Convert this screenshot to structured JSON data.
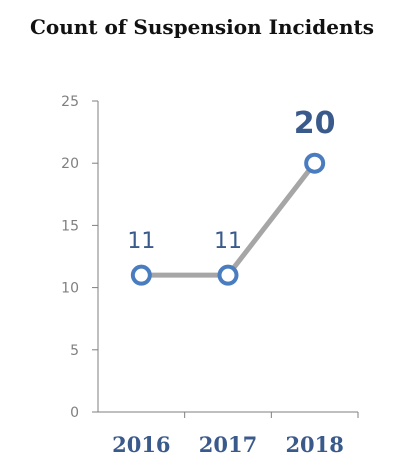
{
  "colors": {
    "line": "#a6a6a6",
    "marker_stroke": "#4a7dc0",
    "marker_fill": "#ffffff",
    "label": "#3a5a8c",
    "axis": "#7f7f7f",
    "title": "#111111"
  },
  "chart_data": {
    "type": "line",
    "title": "Count of Suspension Incidents",
    "xlabel": "",
    "ylabel": "",
    "categories": [
      "2016",
      "2017",
      "2018"
    ],
    "series": [
      {
        "values": [
          11,
          11,
          20
        ],
        "data_labels": [
          "11",
          "11",
          "20"
        ],
        "highlighted_label_index": 2
      }
    ],
    "ylim": [
      0,
      25
    ],
    "y_ticks": [
      "0",
      "5",
      "10",
      "15",
      "20",
      "25"
    ],
    "grid": false,
    "legend": "none"
  }
}
